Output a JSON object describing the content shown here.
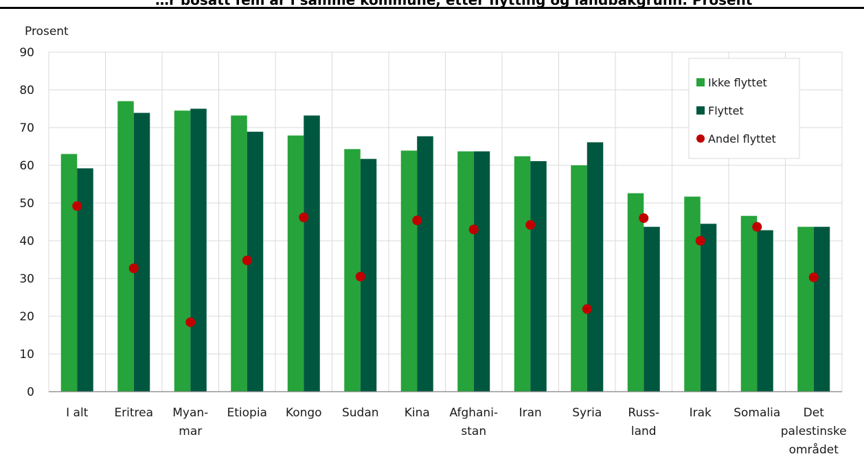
{
  "title": "…r bosatt fem år i samme kommune, etter flytting og landbakgrunn. Prosent",
  "colors": {
    "ikke_flyttet": "#26a33a",
    "flyttet": "#00573f",
    "andel_flyttet": "#c00000",
    "grid": "#d9d9d9"
  },
  "chart_data": {
    "type": "bar",
    "ylabel": "Prosent",
    "ylim": [
      0,
      90
    ],
    "yticks": [
      0,
      10,
      20,
      30,
      40,
      50,
      60,
      70,
      80,
      90
    ],
    "grid": true,
    "legend_position": "top-right",
    "categories": [
      [
        "I alt"
      ],
      [
        "Eritrea"
      ],
      [
        "Myan-",
        "mar"
      ],
      [
        "Etiopia"
      ],
      [
        "Kongo"
      ],
      [
        "Sudan"
      ],
      [
        "Kina"
      ],
      [
        "Afghani-",
        "stan"
      ],
      [
        "Iran"
      ],
      [
        "Syria"
      ],
      [
        "Russ-",
        "land"
      ],
      [
        "Irak"
      ],
      [
        "Somalia"
      ],
      [
        "Det",
        "palestinske",
        "området"
      ]
    ],
    "series": [
      {
        "name": "Ikke flyttet",
        "type": "bar",
        "values": [
          63.0,
          77.0,
          74.5,
          73.2,
          67.9,
          64.3,
          63.9,
          63.7,
          62.4,
          60.0,
          52.6,
          51.7,
          46.6,
          43.7
        ]
      },
      {
        "name": "Flyttet",
        "type": "bar",
        "values": [
          59.2,
          73.9,
          75.0,
          68.9,
          73.2,
          61.7,
          67.7,
          63.7,
          61.1,
          66.1,
          43.7,
          44.5,
          42.8,
          43.7
        ]
      },
      {
        "name": "Andel flyttet",
        "type": "scatter",
        "values": [
          49.2,
          32.7,
          18.4,
          34.8,
          46.2,
          30.5,
          45.4,
          43.0,
          44.2,
          21.9,
          46.0,
          40.0,
          43.7,
          30.3
        ]
      }
    ]
  }
}
